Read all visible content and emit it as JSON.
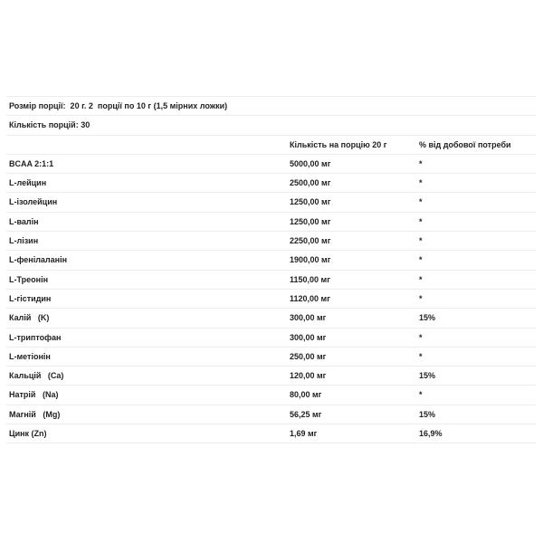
{
  "serving_size": "Розмір порції:  20 г. 2  порції по 10 г (1,5 мірних ложки)",
  "servings_count": "Кількість порцій: 30",
  "header": {
    "amount": "Кількість на порцію 20 г",
    "percent": "% від добової потреби"
  },
  "rows": [
    {
      "name": "BCAA 2:1:1",
      "amount": "5000,00 мг",
      "percent": "*"
    },
    {
      "name": "L-лейцин",
      "amount": "2500,00 мг",
      "percent": "*"
    },
    {
      "name": "L-ізолейцин",
      "amount": "1250,00 мг",
      "percent": "*"
    },
    {
      "name": "L-валін",
      "amount": "1250,00 мг",
      "percent": "*"
    },
    {
      "name": "L-лізин",
      "amount": "2250,00 мг",
      "percent": "*"
    },
    {
      "name": "L-фенілаланін",
      "amount": "1900,00 мг",
      "percent": "*"
    },
    {
      "name": "L-Треонін",
      "amount": "1150,00 мг",
      "percent": "*"
    },
    {
      "name": "L-гістидин",
      "amount": "1120,00 мг",
      "percent": "*"
    },
    {
      "name": "Калій   (K)",
      "amount": "300,00 мг",
      "percent": "15%"
    },
    {
      "name": "L-триптофан",
      "amount": "300,00 мг",
      "percent": "*"
    },
    {
      "name": "L-метіонін",
      "amount": "250,00 мг",
      "percent": "*"
    },
    {
      "name": "Кальцій   (Ca)",
      "amount": "120,00 мг",
      "percent": "15%"
    },
    {
      "name": "Натрій   (Na)",
      "amount": "80,00 мг",
      "percent": "*"
    },
    {
      "name": "Магній   (Mg)",
      "amount": "56,25 мг",
      "percent": "15%"
    },
    {
      "name": "Цинк (Zn)",
      "amount": "1,69 мг",
      "percent": "16,9%"
    }
  ]
}
